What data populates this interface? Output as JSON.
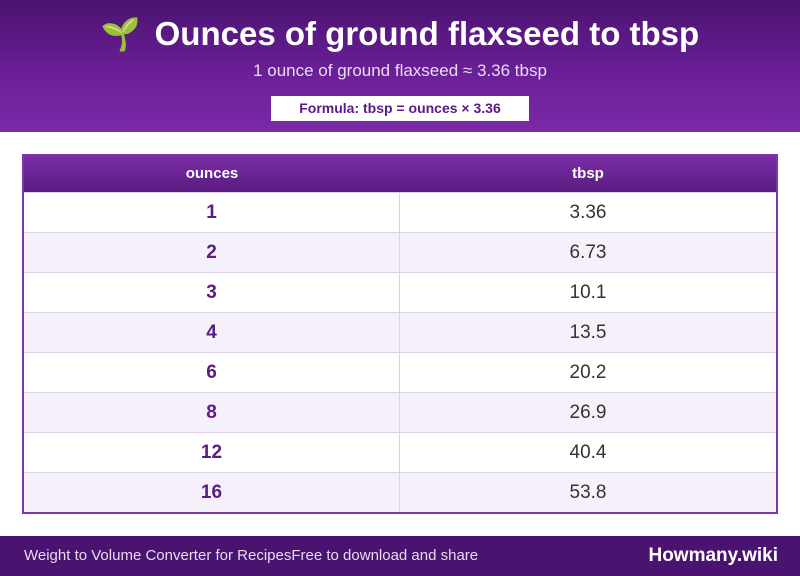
{
  "header": {
    "icon": "🌱",
    "title": "Ounces of ground flaxseed to tbsp",
    "subtitle": "1 ounce of ground flaxseed ≈ 3.36 tbsp",
    "formula": "Formula: tbsp = ounces × 3.36"
  },
  "table": {
    "columns": [
      "ounces",
      "tbsp"
    ],
    "rows": [
      [
        "1",
        "3.36"
      ],
      [
        "2",
        "6.73"
      ],
      [
        "3",
        "10.1"
      ],
      [
        "4",
        "13.5"
      ],
      [
        "6",
        "20.2"
      ],
      [
        "8",
        "26.9"
      ],
      [
        "12",
        "40.4"
      ],
      [
        "16",
        "53.8"
      ]
    ]
  },
  "footer": {
    "left_a": "Weight to Volume Converter for Recipes",
    "left_b": "Free to download and share",
    "brand": "Howmany.wiki"
  },
  "colors": {
    "header_bg": "#5a1b82",
    "accent": "#7a35a8",
    "footer_bg": "#4b1370"
  }
}
